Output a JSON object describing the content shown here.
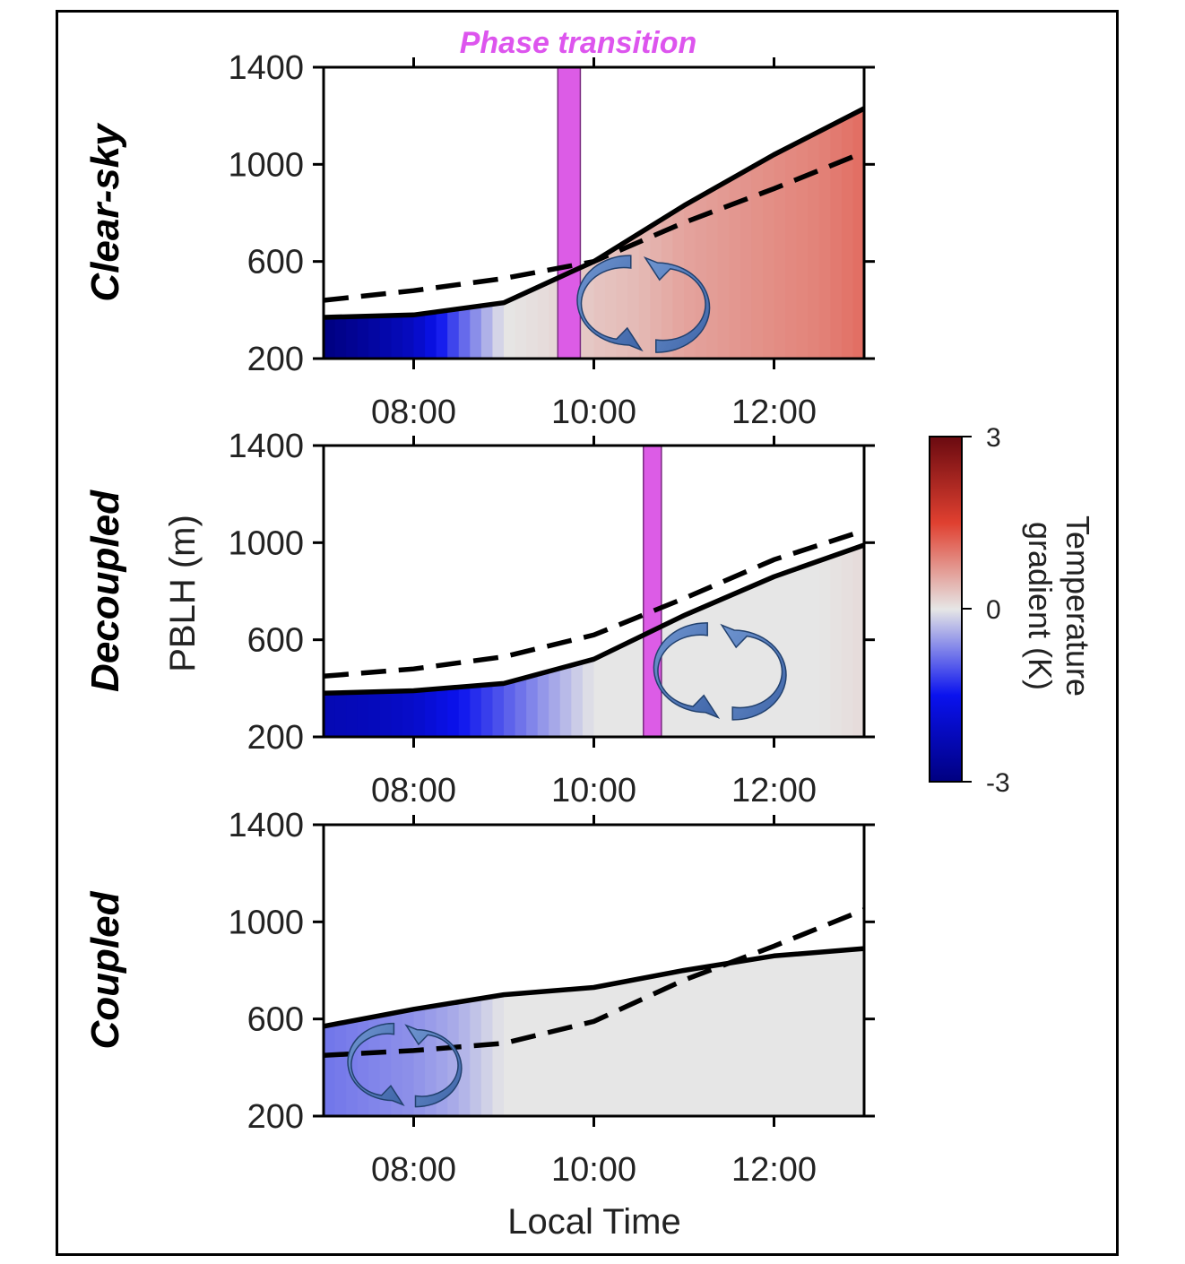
{
  "chart_data": {
    "type": "area",
    "phase_title": "Phase transition",
    "ylabel": "PBLH (m)",
    "xlabel": "Local Time",
    "ylim": [
      200,
      1400
    ],
    "yticks": [
      200,
      600,
      1000,
      1400
    ],
    "xlim": [
      7.0,
      13.0
    ],
    "xticks": [
      8,
      10,
      12
    ],
    "xtick_labels": [
      "08:00",
      "10:00",
      "12:00"
    ],
    "colorbar": {
      "title_lines": [
        "Temperature",
        "gradient (K)"
      ],
      "min": -3,
      "max": 3,
      "tick_labels": [
        "3",
        "0",
        "-3"
      ],
      "colors": [
        "#000080",
        "#0a12ee",
        "#e6e6e6",
        "#e04030",
        "#6a0a10"
      ]
    },
    "panels": [
      {
        "label": "Clear-sky",
        "phase_transition": [
          9.6,
          9.85
        ],
        "solid": {
          "x": [
            7.0,
            8.0,
            9.0,
            10.0,
            11.0,
            12.0,
            13.0
          ],
          "y": [
            370,
            380,
            430,
            600,
            830,
            1040,
            1230
          ]
        },
        "dashed": {
          "x": [
            7.0,
            8.0,
            9.0,
            10.0,
            11.0,
            12.0,
            13.0
          ],
          "y": [
            440,
            480,
            530,
            600,
            760,
            900,
            1050
          ]
        },
        "gradient": {
          "x": [
            7.0,
            7.5,
            8.0,
            8.5,
            9.0,
            9.5,
            10.0,
            10.5,
            11.0,
            11.5,
            12.0,
            12.5,
            13.0
          ],
          "values": [
            -3.0,
            -2.6,
            -2.1,
            -1.0,
            0.0,
            0.1,
            0.3,
            0.4,
            0.6,
            0.7,
            0.8,
            0.9,
            1.1
          ]
        },
        "circulation_center": [
          10.55,
          425
        ]
      },
      {
        "label": "Decoupled",
        "phase_transition": [
          10.55,
          10.75
        ],
        "solid": {
          "x": [
            7.0,
            8.0,
            9.0,
            10.0,
            11.0,
            12.0,
            13.0
          ],
          "y": [
            380,
            390,
            420,
            520,
            700,
            860,
            990
          ]
        },
        "dashed": {
          "x": [
            7.0,
            8.0,
            9.0,
            10.0,
            11.0,
            12.0,
            13.0
          ],
          "y": [
            450,
            480,
            530,
            620,
            770,
            930,
            1050
          ]
        },
        "gradient": {
          "x": [
            7.0,
            7.5,
            8.0,
            8.5,
            9.0,
            9.5,
            10.0,
            10.5,
            11.0,
            11.5,
            12.0,
            12.5,
            13.0
          ],
          "values": [
            -2.3,
            -2.2,
            -2.0,
            -1.5,
            -1.0,
            -0.5,
            0.0,
            0.0,
            0.0,
            0.0,
            0.0,
            0.0,
            0.1
          ]
        },
        "circulation_center": [
          11.4,
          470
        ]
      },
      {
        "label": "Coupled",
        "phase_transition": null,
        "solid": {
          "x": [
            7.0,
            8.0,
            9.0,
            10.0,
            11.0,
            12.0,
            13.0
          ],
          "y": [
            570,
            640,
            700,
            730,
            800,
            860,
            890
          ]
        },
        "dashed": {
          "x": [
            7.0,
            8.0,
            9.0,
            10.0,
            11.0,
            12.0,
            13.0
          ],
          "y": [
            450,
            470,
            500,
            590,
            760,
            900,
            1050
          ]
        },
        "gradient": {
          "x": [
            7.0,
            7.5,
            8.0,
            8.5,
            9.0,
            9.5,
            10.0,
            10.5,
            11.0,
            11.5,
            12.0,
            12.5,
            13.0
          ],
          "values": [
            -0.8,
            -0.7,
            -0.6,
            -0.4,
            0.0,
            0.0,
            0.0,
            0.0,
            0.0,
            0.0,
            0.0,
            0.0,
            0.0
          ]
        },
        "circulation_center": [
          7.9,
          410
        ]
      }
    ]
  }
}
